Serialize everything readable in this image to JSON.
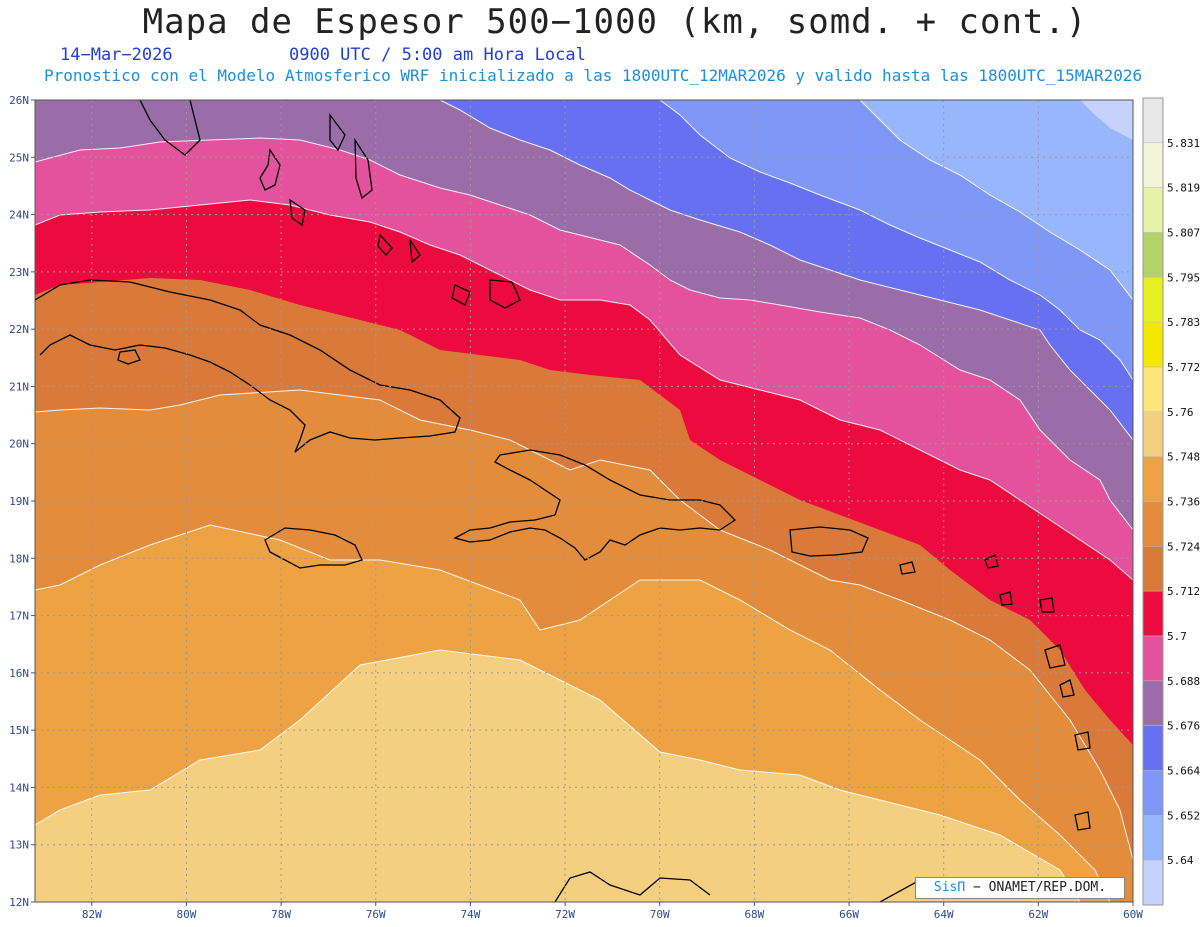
{
  "header": {
    "title": "Mapa de Espesor 500−1000 (km, somd. + cont.)",
    "date": "14−Mar−2026",
    "time": "0900 UTC / 5:00 am Hora Local",
    "model_line": "Pronostico con el Modelo Atmosferico WRF inicializado a las 1800UTC_12MAR2026 y valido hasta las  1800UTC_15MAR2026"
  },
  "axes": {
    "lat_labels": [
      "26N",
      "25N",
      "24N",
      "23N",
      "22N",
      "21N",
      "20N",
      "19N",
      "18N",
      "17N",
      "16N",
      "15N",
      "14N",
      "13N",
      "12N"
    ],
    "lon_labels": [
      "82W",
      "80W",
      "78W",
      "76W",
      "74W",
      "72W",
      "70W",
      "68W",
      "66W",
      "64W",
      "62W",
      "60W"
    ],
    "lat_range": [
      12,
      26
    ],
    "lon_range": [
      -83.2,
      -60
    ],
    "grid": true
  },
  "legend": {
    "levels": [
      "5.831",
      "5.819",
      "5.807",
      "5.795",
      "5.783",
      "5.772",
      "5.76",
      "5.748",
      "5.736",
      "5.724",
      "5.712",
      "5.7",
      "5.688",
      "5.676",
      "5.664",
      "5.652",
      "5.64"
    ],
    "colors": [
      "#e8e8e8",
      "#f2f4d8",
      "#e6f2a8",
      "#b3d36a",
      "#e6f020",
      "#f5e800",
      "#fce57a",
      "#f4cf80",
      "#eda244",
      "#e28c3c",
      "#d97a3a",
      "#ec0a3e",
      "#e4529e",
      "#9a6da8",
      "#6670f0",
      "#7f98f8",
      "#97b6fc",
      "#c4d2fc"
    ]
  },
  "credit": {
    "brand": "SisΠ",
    "text": " − ONAMET/REP.DOM."
  },
  "colors": {
    "band_5712": "#d97a3a",
    "band_5700": "#ec0a3e",
    "band_5688": "#e4529e",
    "band_5676": "#9a6da8",
    "band_5664": "#6670f0",
    "band_5652": "#7f98f8",
    "band_5640": "#97b6fc",
    "band_5724": "#e28c3c",
    "band_5736": "#eda244",
    "band_5748": "#f4cf80"
  }
}
